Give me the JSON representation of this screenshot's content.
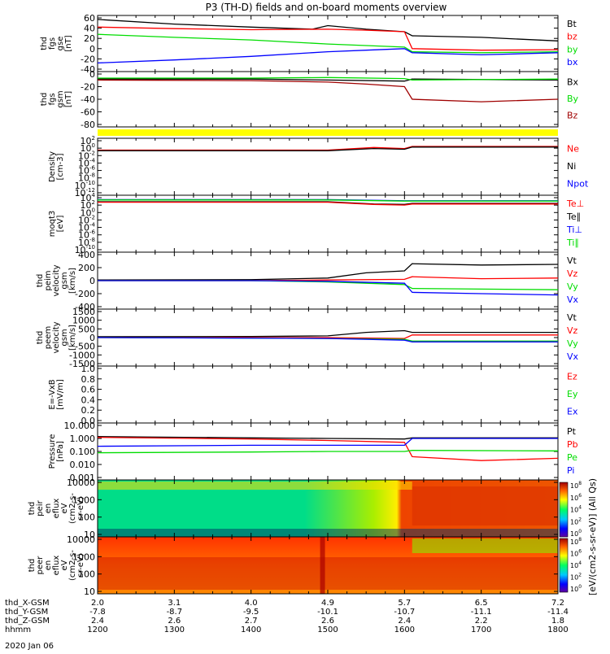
{
  "title": "P3 (TH-D) fields and on-board moments overview",
  "footer_date": "2020 Jan 06",
  "colors": {
    "black": "#000000",
    "red": "#ff0000",
    "green": "#00dd00",
    "blue": "#0000ff",
    "darkred": "#a00000",
    "yellow": "#ffff00"
  },
  "orbit": {
    "row_labels": [
      "thd_X-GSM",
      "thd_Y-GSM",
      "thd_Z-GSM",
      "hhmm"
    ],
    "columns": [
      {
        "x": "2.0",
        "y": "-7.8",
        "z": "2.4",
        "hhmm": "1200"
      },
      {
        "x": "3.1",
        "y": "-8.7",
        "z": "2.6",
        "hhmm": "1300"
      },
      {
        "x": "4.0",
        "y": "-9.5",
        "z": "2.7",
        "hhmm": "1400"
      },
      {
        "x": "4.9",
        "y": "-10.1",
        "z": "2.6",
        "hhmm": "1500"
      },
      {
        "x": "5.7",
        "y": "-10.7",
        "z": "2.4",
        "hhmm": "1600"
      },
      {
        "x": "6.5",
        "y": "-11.1",
        "z": "2.2",
        "hhmm": "1700"
      },
      {
        "x": "7.2",
        "y": "-11.4",
        "z": "1.8",
        "hhmm": "1800"
      }
    ]
  },
  "colorbar": {
    "label": "[eV/(cm2-s-sr-eV)] (All Qs)",
    "ticks": [
      "10^8",
      "10^6",
      "10^4",
      "10^2",
      "10^0"
    ],
    "ticks_2": [
      "10^8",
      "10^6",
      "10^4",
      "10^2",
      "10^0"
    ]
  },
  "chart_data": {
    "type": "line",
    "x_range": [
      "12:00",
      "18:00"
    ],
    "panels": [
      {
        "ylabel": [
          "thd",
          "fgs",
          "gse",
          "[nT]"
        ],
        "ylim": [
          -40,
          60
        ],
        "yticks": [
          "60",
          "40",
          "20",
          "0",
          "-20",
          "-40"
        ],
        "legend": [
          {
            "name": "Bt",
            "color": "#000000"
          },
          {
            "name": "bz",
            "color": "#ff0000"
          },
          {
            "name": "by",
            "color": "#00dd00"
          },
          {
            "name": "bx",
            "color": "#0000ff"
          }
        ],
        "series": [
          {
            "name": "Bt",
            "color": "#000000",
            "x": [
              12.0,
              13.0,
              14.0,
              14.8,
              15.0,
              15.5,
              16.0,
              16.1,
              17.0,
              18.0
            ],
            "values": [
              57,
              48,
              42,
              38,
              45,
              38,
              33,
              25,
              22,
              15
            ]
          },
          {
            "name": "bz",
            "color": "#ff0000",
            "x": [
              12.0,
              13.0,
              14.0,
              15.0,
              15.5,
              16.0,
              16.1,
              17.0,
              18.0
            ],
            "values": [
              42,
              39,
              37,
              38,
              36,
              33,
              0,
              -3,
              -2
            ]
          },
          {
            "name": "by",
            "color": "#00dd00",
            "x": [
              12.0,
              13.0,
              14.0,
              15.0,
              15.5,
              16.0,
              16.1,
              17.0,
              18.0
            ],
            "values": [
              28,
              22,
              17,
              9,
              6,
              3,
              -6,
              -8,
              -6
            ]
          },
          {
            "name": "bx",
            "color": "#0000ff",
            "x": [
              12.0,
              13.0,
              14.0,
              15.0,
              15.5,
              16.0,
              16.1,
              17.0,
              18.0
            ],
            "values": [
              -28,
              -22,
              -15,
              -6,
              -3,
              0,
              -8,
              -12,
              -8
            ]
          }
        ]
      },
      {
        "ylabel": [
          "thd",
          "fgs",
          "gsm",
          "[nT]"
        ],
        "ylim": [
          -90,
          10
        ],
        "yticks": [
          "0",
          "-20",
          "-40",
          "-60",
          "-80"
        ],
        "legend": [
          {
            "name": "Bx",
            "color": "#000000"
          },
          {
            "name": "By",
            "color": "#00dd00"
          },
          {
            "name": "Bz",
            "color": "#a00000"
          }
        ],
        "series": [
          {
            "name": "Bx",
            "color": "#000000",
            "x": [
              12.0,
              14.0,
              15.0,
              16.0,
              16.1,
              18.0
            ],
            "values": [
              0,
              0,
              -2,
              -4,
              0,
              -2
            ]
          },
          {
            "name": "By",
            "color": "#00dd00",
            "x": [
              12.0,
              14.0,
              15.0,
              16.0,
              16.1,
              18.0
            ],
            "values": [
              2,
              2,
              3,
              1,
              -2,
              0
            ]
          },
          {
            "name": "Bz",
            "color": "#a00000",
            "x": [
              12.0,
              14.0,
              15.0,
              15.5,
              16.0,
              16.1,
              17.0,
              18.0
            ],
            "values": [
              -2,
              -3,
              -6,
              -10,
              -15,
              -40,
              -45,
              -40
            ]
          }
        ]
      },
      {
        "ylabel": [
          "Density",
          "[cm-3]"
        ],
        "ylim": [
          "10^-12",
          "10^2"
        ],
        "yticks": [
          "10^2",
          "10^0",
          "10^-2",
          "10^-4",
          "10^-6",
          "10^-8",
          "10^-10",
          "10^-12"
        ],
        "legend": [
          {
            "name": "Ne",
            "color": "#ff0000"
          },
          {
            "name": "Ni",
            "color": "#000000"
          },
          {
            "name": "Npot",
            "color": "#0000ff"
          }
        ],
        "series": [
          {
            "name": "Ne",
            "color": "#ff0000",
            "x": [
              12.0,
              15.0,
              15.6,
              16.0,
              16.1,
              18.0
            ],
            "values": [
              0.3,
              0.3,
              1.5,
              0.8,
              3.0,
              3.0
            ]
          },
          {
            "name": "Ni",
            "color": "#000000",
            "x": [
              12.0,
              15.0,
              15.6,
              16.0,
              16.1,
              18.0
            ],
            "values": [
              0.2,
              0.2,
              0.8,
              0.5,
              2.0,
              2.0
            ]
          }
        ]
      },
      {
        "ylabel": [
          "moqt3",
          "[eV]"
        ],
        "ylim": [
          "10^-10",
          "10^4"
        ],
        "yticks": [
          "10^4",
          "10^2",
          "10^0",
          "10^-2",
          "10^-4",
          "10^-6",
          "10^-8",
          "10^-10"
        ],
        "legend": [
          {
            "name": "Te⊥",
            "color": "#ff0000"
          },
          {
            "name": "Te∥",
            "color": "#000000"
          },
          {
            "name": "Ti⊥",
            "color": "#0000ff"
          },
          {
            "name": "Ti∥",
            "color": "#00dd00"
          }
        ],
        "series": [
          {
            "name": "Ti⊥",
            "color": "#0000ff",
            "x": [
              12.0,
              15.0,
              16.0,
              18.0
            ],
            "values": [
              3000,
              3000,
              1500,
              1500
            ]
          },
          {
            "name": "Ti∥",
            "color": "#00dd00",
            "x": [
              12.0,
              15.0,
              16.0,
              18.0
            ],
            "values": [
              2500,
              2500,
              1200,
              1200
            ]
          },
          {
            "name": "Te∥",
            "color": "#000000",
            "x": [
              12.0,
              15.0,
              15.6,
              16.0,
              16.1,
              18.0
            ],
            "values": [
              800,
              800,
              200,
              150,
              300,
              300
            ]
          },
          {
            "name": "Te⊥",
            "color": "#ff0000",
            "x": [
              12.0,
              15.0,
              15.6,
              16.0,
              16.1,
              18.0
            ],
            "values": [
              600,
              600,
              150,
              100,
              200,
              200
            ]
          }
        ]
      },
      {
        "ylabel": [
          "thd",
          "peim",
          "velocity",
          "gsm",
          "[km/s]"
        ],
        "ylim": [
          -400,
          400
        ],
        "yticks": [
          "400",
          "200",
          "0",
          "-200",
          "-400"
        ],
        "legend": [
          {
            "name": "Vt",
            "color": "#000000"
          },
          {
            "name": "Vz",
            "color": "#ff0000"
          },
          {
            "name": "Vy",
            "color": "#00dd00"
          },
          {
            "name": "Vx",
            "color": "#0000ff"
          }
        ],
        "series": [
          {
            "name": "Vt",
            "color": "#000000",
            "x": [
              12.0,
              14.0,
              15.0,
              15.5,
              16.0,
              16.1,
              17.0,
              18.0
            ],
            "values": [
              10,
              15,
              40,
              120,
              150,
              260,
              240,
              250
            ]
          },
          {
            "name": "Vz",
            "color": "#ff0000",
            "x": [
              12.0,
              14.0,
              15.0,
              16.0,
              16.1,
              17.0,
              18.0
            ],
            "values": [
              0,
              0,
              10,
              20,
              60,
              30,
              40
            ]
          },
          {
            "name": "Vy",
            "color": "#00dd00",
            "x": [
              12.0,
              14.0,
              15.0,
              16.0,
              16.1,
              17.0,
              18.0
            ],
            "values": [
              0,
              0,
              -20,
              -60,
              -120,
              -130,
              -140
            ]
          },
          {
            "name": "Vx",
            "color": "#0000ff",
            "x": [
              12.0,
              14.0,
              15.0,
              16.0,
              16.1,
              17.0,
              18.0
            ],
            "values": [
              0,
              0,
              -10,
              -40,
              -180,
              -200,
              -220
            ]
          }
        ]
      },
      {
        "ylabel": [
          "thd",
          "peem",
          "velocity",
          "gsm",
          "[km/s]"
        ],
        "ylim": [
          -1500,
          1500
        ],
        "yticks": [
          "1500",
          "1000",
          "500",
          "0",
          "-500",
          "-1000",
          "-1500"
        ],
        "legend": [
          {
            "name": "Vt",
            "color": "#000000"
          },
          {
            "name": "Vz",
            "color": "#ff0000"
          },
          {
            "name": "Vy",
            "color": "#00dd00"
          },
          {
            "name": "Vx",
            "color": "#0000ff"
          }
        ],
        "series": [
          {
            "name": "Vt",
            "color": "#000000",
            "x": [
              12.0,
              14.0,
              15.0,
              15.5,
              16.0,
              16.1,
              17.0,
              18.0
            ],
            "values": [
              50,
              60,
              100,
              300,
              400,
              300,
              300,
              300
            ]
          },
          {
            "name": "Vz",
            "color": "#ff0000",
            "x": [
              12.0,
              15.0,
              16.0,
              16.1,
              18.0
            ],
            "values": [
              0,
              0,
              -50,
              150,
              150
            ]
          },
          {
            "name": "Vy",
            "color": "#00dd00",
            "x": [
              12.0,
              15.0,
              16.0,
              16.1,
              18.0
            ],
            "values": [
              0,
              -50,
              -100,
              -200,
              -200
            ]
          },
          {
            "name": "Vx",
            "color": "#0000ff",
            "x": [
              12.0,
              15.0,
              16.0,
              16.1,
              18.0
            ],
            "values": [
              0,
              -50,
              -150,
              -250,
              -250
            ]
          }
        ]
      },
      {
        "ylabel": [
          "E=-VxB",
          "[mV/m]"
        ],
        "ylim": [
          0,
          1
        ],
        "yticks": [
          "1.0",
          "0.8",
          "0.6",
          "0.4",
          "0.2",
          "0.0"
        ],
        "legend": [
          {
            "name": "Ez",
            "color": "#ff0000"
          },
          {
            "name": "Ey",
            "color": "#00dd00"
          },
          {
            "name": "Ex",
            "color": "#0000ff"
          }
        ],
        "series": []
      },
      {
        "ylabel": [
          "Pressure",
          "[nPa]"
        ],
        "ylim": [
          0.001,
          10
        ],
        "yticks": [
          "10.000",
          "1.000",
          "0.100",
          "0.010",
          "0.001"
        ],
        "legend": [
          {
            "name": "Pt",
            "color": "#000000"
          },
          {
            "name": "Pb",
            "color": "#ff0000"
          },
          {
            "name": "Pe",
            "color": "#00dd00"
          },
          {
            "name": "Pi",
            "color": "#0000ff"
          }
        ],
        "series": [
          {
            "name": "Pt",
            "color": "#000000",
            "x": [
              12.0,
              14.0,
              15.0,
              16.0,
              16.1,
              18.0
            ],
            "values": [
              1.4,
              1.1,
              1.0,
              0.9,
              1.1,
              1.1
            ]
          },
          {
            "name": "Pb",
            "color": "#ff0000",
            "x": [
              12.0,
              14.0,
              15.0,
              16.0,
              16.1,
              17.0,
              18.0
            ],
            "values": [
              1.2,
              0.9,
              0.7,
              0.5,
              0.04,
              0.02,
              0.03
            ]
          },
          {
            "name": "Pi",
            "color": "#0000ff",
            "x": [
              12.0,
              14.0,
              15.0,
              16.0,
              16.1,
              18.0
            ],
            "values": [
              0.25,
              0.3,
              0.3,
              0.3,
              1.0,
              1.0
            ]
          },
          {
            "name": "Pe",
            "color": "#00dd00",
            "x": [
              12.0,
              14.0,
              15.0,
              16.0,
              16.1,
              18.0
            ],
            "values": [
              0.08,
              0.09,
              0.1,
              0.1,
              0.12,
              0.11
            ]
          }
        ]
      },
      {
        "type": "heatmap",
        "ylabel": [
          "thd",
          "peir",
          "en",
          "eflux",
          "eV",
          "(cm2-s-",
          "sr-eV)"
        ],
        "yticks": [
          "10000",
          "1000",
          "100",
          "10"
        ]
      },
      {
        "type": "heatmap",
        "ylabel": [
          "thd",
          "peer",
          "en",
          "eflux",
          "eV",
          "(cm2-s-",
          "sr-eV)"
        ],
        "yticks": [
          "10000",
          "1000",
          "100",
          "10"
        ]
      }
    ]
  }
}
